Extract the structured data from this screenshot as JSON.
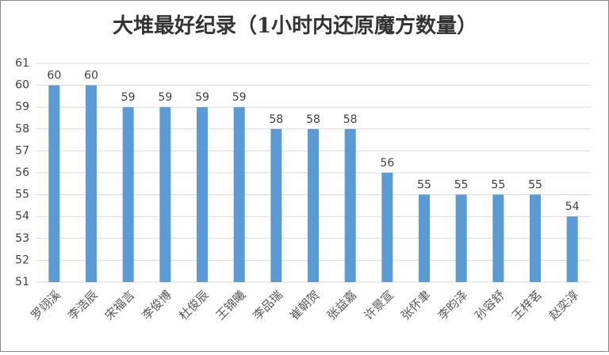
{
  "chart_data": {
    "type": "bar",
    "title": "大堆最好纪录（1小时内还原魔方数量）",
    "categories": [
      "罗翊溪",
      "李浩辰",
      "宋福言",
      "李俊博",
      "杜俊辰",
      "王锦曦",
      "李品瑞",
      "崔朝贺",
      "张益嘉",
      "许景宣",
      "张怀聿",
      "李昀泽",
      "孙容舒",
      "王梓茗",
      "赵奕淳"
    ],
    "values": [
      60,
      60,
      59,
      59,
      59,
      59,
      58,
      58,
      58,
      56,
      55,
      55,
      55,
      55,
      54
    ],
    "color": "#5b9bd5",
    "ylim": [
      51,
      61
    ],
    "yticks": [
      51,
      52,
      53,
      54,
      55,
      56,
      57,
      58,
      59,
      60,
      61
    ],
    "grid": true
  }
}
